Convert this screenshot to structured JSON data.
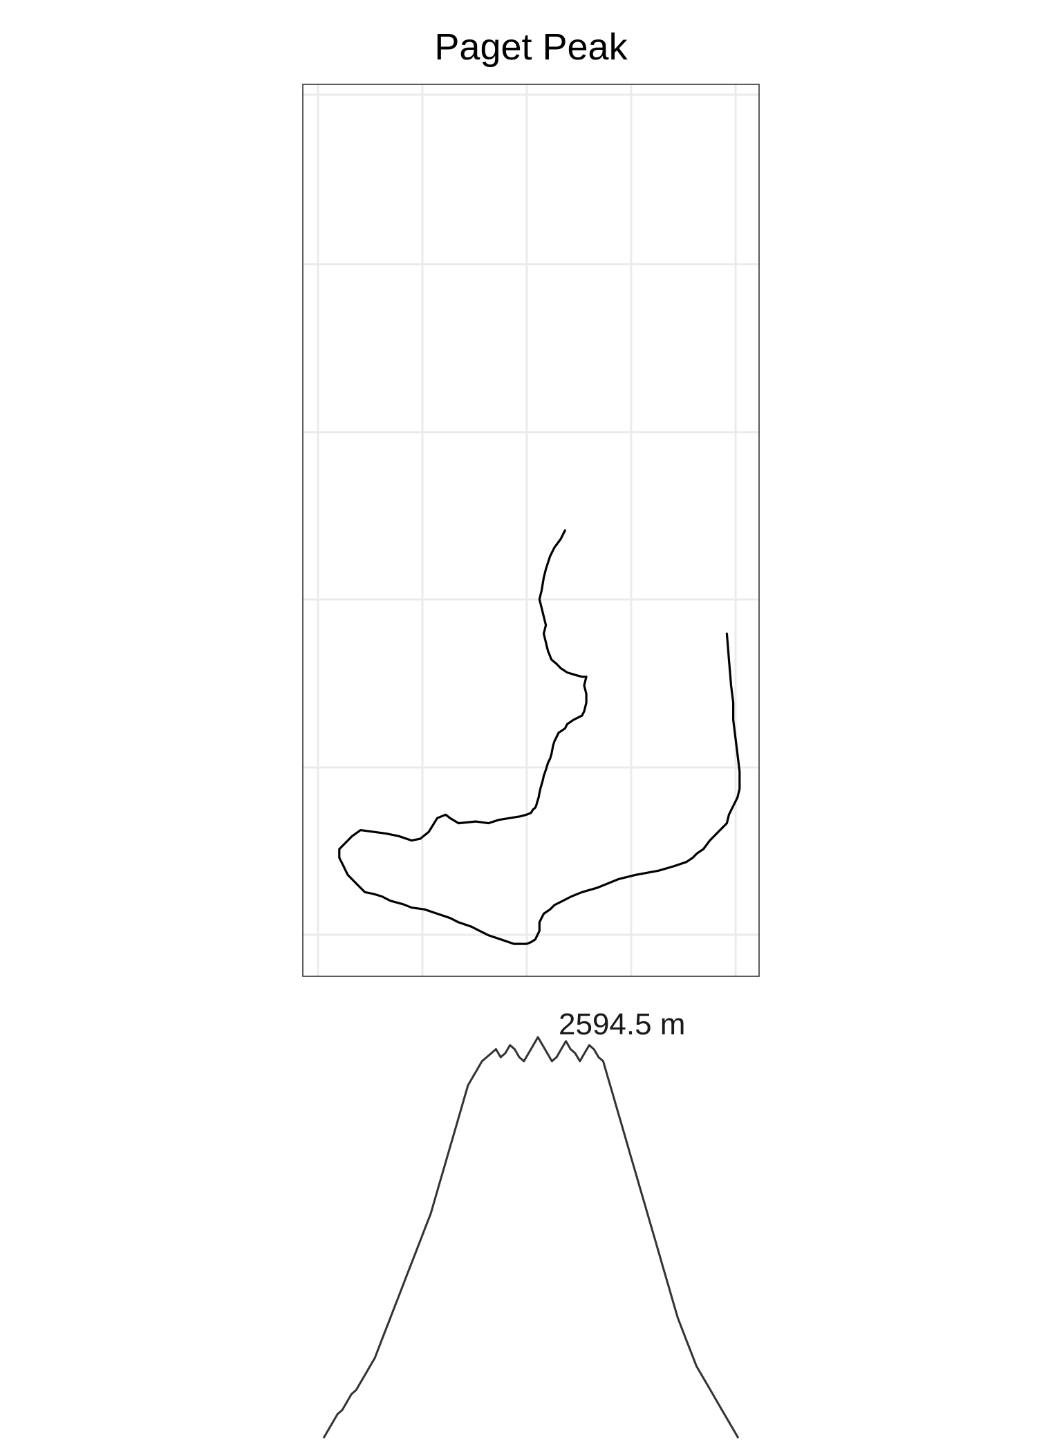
{
  "chart_data": [
    {
      "type": "line",
      "chart_role": "route-map",
      "title": "Paget Peak",
      "grid": true,
      "axes_labels_shown": false,
      "colors": {
        "route": "#000000",
        "grid": "#ebebeb",
        "frame": "#333333"
      },
      "x": [
        0.58,
        0.57,
        0.555,
        0.545,
        0.535,
        0.53,
        0.525,
        0.52,
        0.525,
        0.53,
        0.535,
        0.53,
        0.535,
        0.54,
        0.548,
        0.56,
        0.57,
        0.585,
        0.605,
        0.62,
        0.63,
        0.625,
        0.63,
        0.63,
        0.625,
        0.62,
        0.6,
        0.585,
        0.58,
        0.565,
        0.56,
        0.555,
        0.552,
        0.55,
        0.548,
        0.545,
        0.54,
        0.535,
        0.53,
        0.528,
        0.525,
        0.522,
        0.52,
        0.518,
        0.515,
        0.512,
        0.51,
        0.505,
        0.5,
        0.49,
        0.475,
        0.45,
        0.425,
        0.4,
        0.37,
        0.33,
        0.31,
        0.3,
        0.28,
        0.26,
        0.24,
        0.22,
        0.19,
        0.16,
        0.13,
        0.1,
        0.08,
        0.07,
        0.06,
        0.05,
        0.05,
        0.055,
        0.06,
        0.065,
        0.07,
        0.08,
        0.09,
        0.1,
        0.11,
        0.13,
        0.15,
        0.17,
        0.2,
        0.22,
        0.25,
        0.28,
        0.31,
        0.33,
        0.36,
        0.38,
        0.4,
        0.43,
        0.46,
        0.49,
        0.5,
        0.51,
        0.515,
        0.52,
        0.52,
        0.52,
        0.525,
        0.53,
        0.545,
        0.555,
        0.575,
        0.595,
        0.62,
        0.655,
        0.68,
        0.705,
        0.745,
        0.8,
        0.835,
        0.865,
        0.88,
        0.89,
        0.905,
        0.92,
        0.94,
        0.96,
        0.965,
        0.975,
        0.985,
        0.99,
        0.99,
        0.985,
        0.98,
        0.975,
        0.975,
        0.97,
        0.965,
        0.96
      ],
      "y": [
        0.5,
        0.49,
        0.48,
        0.47,
        0.455,
        0.445,
        0.43,
        0.42,
        0.41,
        0.4,
        0.39,
        0.38,
        0.37,
        0.36,
        0.35,
        0.345,
        0.34,
        0.335,
        0.332,
        0.33,
        0.33,
        0.32,
        0.31,
        0.3,
        0.29,
        0.285,
        0.28,
        0.275,
        0.27,
        0.265,
        0.26,
        0.255,
        0.25,
        0.245,
        0.24,
        0.235,
        0.23,
        0.222,
        0.215,
        0.21,
        0.205,
        0.2,
        0.195,
        0.19,
        0.185,
        0.18,
        0.178,
        0.176,
        0.172,
        0.17,
        0.168,
        0.166,
        0.164,
        0.16,
        0.162,
        0.16,
        0.166,
        0.17,
        0.166,
        0.15,
        0.142,
        0.14,
        0.145,
        0.148,
        0.15,
        0.152,
        0.145,
        0.14,
        0.135,
        0.13,
        0.12,
        0.115,
        0.11,
        0.105,
        0.1,
        0.095,
        0.09,
        0.085,
        0.08,
        0.078,
        0.075,
        0.07,
        0.066,
        0.062,
        0.06,
        0.055,
        0.05,
        0.045,
        0.04,
        0.035,
        0.03,
        0.025,
        0.02,
        0.02,
        0.022,
        0.025,
        0.03,
        0.035,
        0.04,
        0.045,
        0.05,
        0.055,
        0.06,
        0.065,
        0.07,
        0.075,
        0.08,
        0.085,
        0.09,
        0.095,
        0.1,
        0.105,
        0.11,
        0.115,
        0.12,
        0.125,
        0.13,
        0.14,
        0.15,
        0.16,
        0.17,
        0.18,
        0.19,
        0.2,
        0.22,
        0.24,
        0.26,
        0.28,
        0.3,
        0.32,
        0.35,
        0.38
      ]
    },
    {
      "type": "line",
      "chart_role": "elevation-profile",
      "max_label": "2594.5 m",
      "peak_value": 2594.5,
      "axes_shown": false,
      "colors": {
        "line": "#333333"
      },
      "values": [
        0,
        2,
        4,
        6,
        7,
        9,
        11,
        12,
        14,
        16,
        18,
        20,
        23,
        26,
        29,
        32,
        35,
        38,
        41,
        44,
        47,
        50,
        53,
        56,
        60,
        64,
        68,
        72,
        76,
        80,
        84,
        88,
        90,
        92,
        94,
        95,
        96,
        97,
        95,
        96,
        98,
        97,
        95,
        94,
        96,
        98,
        100,
        98,
        96,
        94,
        95,
        97,
        99,
        97,
        96,
        94,
        96,
        98,
        97,
        95,
        94,
        90,
        86,
        82,
        78,
        74,
        70,
        66,
        62,
        58,
        54,
        50,
        46,
        42,
        38,
        34,
        30,
        27,
        24,
        21,
        18,
        16,
        14,
        12,
        10,
        8,
        6,
        4,
        2,
        0
      ]
    }
  ]
}
